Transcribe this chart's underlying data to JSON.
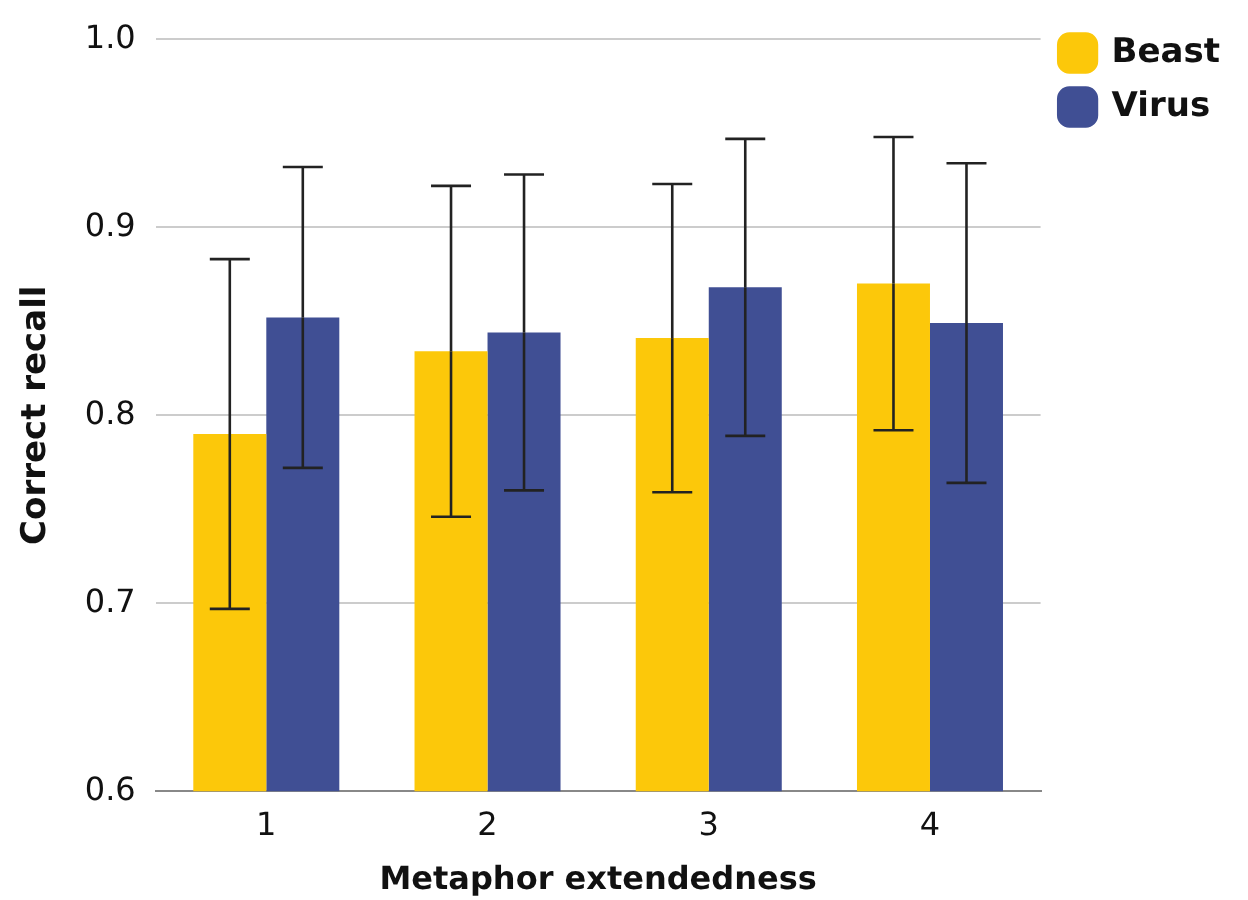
{
  "chart_data": {
    "type": "bar",
    "xlabel": "Metaphor extendedness",
    "ylabel": "Correct recall",
    "categories": [
      "1",
      "2",
      "3",
      "4"
    ],
    "series": [
      {
        "name": "Beast",
        "color": "#fcc80a",
        "values": [
          0.79,
          0.834,
          0.841,
          0.87
        ],
        "errors": [
          0.093,
          0.088,
          0.082,
          0.078
        ]
      },
      {
        "name": "Virus",
        "color": "#404f94",
        "values": [
          0.852,
          0.844,
          0.868,
          0.849
        ],
        "errors": [
          0.08,
          0.084,
          0.079,
          0.085
        ]
      }
    ],
    "ylim": [
      0.6,
      1.0
    ],
    "yticks": [
      0.6,
      0.7,
      0.8,
      0.9,
      {
        "value": 1.0,
        "label": "1.0"
      }
    ],
    "grid": "y",
    "legend": "top right"
  }
}
